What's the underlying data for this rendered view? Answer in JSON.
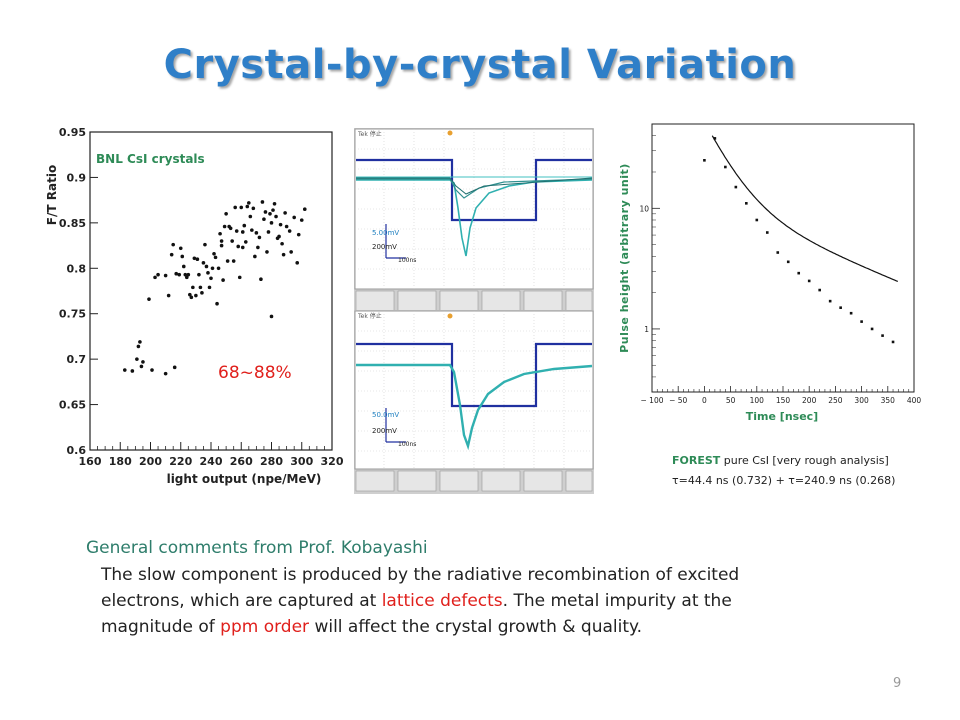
{
  "slide": {
    "title": "Crystal-by-crystal Variation",
    "page_number": "9"
  },
  "comments": {
    "heading": "General comments from Prof. Kobayashi",
    "line1": "The slow component is produced by the radiative recombination of excited",
    "line2_a": "electrons, which are captured at ",
    "line2_red": "lattice defects",
    "line2_b": ". The metal impurity at the",
    "line3_a": "magnitude of ",
    "line3_red": "ppm order",
    "line3_b": " will affect the crystal growth & quality."
  },
  "scatter_label": "BNL CsI crystals",
  "range_annotation": "68~88%",
  "scope_top": {
    "volt_label": "5.00mV",
    "volt2_label": "200mV",
    "time_label": "100ns"
  },
  "scope_bottom": {
    "volt_label": "50.0mV",
    "volt2_label": "200mV",
    "time_label": "100ns"
  },
  "forest": {
    "highlight": "FOREST",
    "line1": " pure CsI [very rough analysis]",
    "line2": "τ=44.4 ns (0.732) + τ=240.9 ns (0.268)"
  },
  "colors": {
    "title": "#2f7fc8",
    "heading": "#2e7d6b",
    "highlight": "#e0201c",
    "axis_green": "#2e8b57"
  },
  "chart_data": [
    {
      "type": "scatter",
      "title": "",
      "xlabel": "light output  (npe/MeV)",
      "ylabel": "F/T Ratio",
      "xlim": [
        160,
        320
      ],
      "ylim": [
        0.6,
        0.95
      ],
      "xticks": [
        "160",
        "180",
        "200",
        "220",
        "240",
        "260",
        "280",
        "300",
        "320"
      ],
      "yticks": [
        "0.6",
        "0.65",
        "0.7",
        "0.75",
        "0.8",
        "0.85",
        "0.9",
        "0.95"
      ],
      "annotation": "BNL CsI crystals",
      "points": [
        [
          183,
          0.688
        ],
        [
          188,
          0.687
        ],
        [
          191,
          0.7
        ],
        [
          192,
          0.714
        ],
        [
          193,
          0.719
        ],
        [
          194,
          0.692
        ],
        [
          195,
          0.697
        ],
        [
          201,
          0.688
        ],
        [
          210,
          0.684
        ],
        [
          216,
          0.691
        ],
        [
          199,
          0.766
        ],
        [
          203,
          0.79
        ],
        [
          205,
          0.793
        ],
        [
          210,
          0.792
        ],
        [
          212,
          0.77
        ],
        [
          214,
          0.815
        ],
        [
          215,
          0.826
        ],
        [
          217,
          0.794
        ],
        [
          219,
          0.793
        ],
        [
          220,
          0.822
        ],
        [
          221,
          0.813
        ],
        [
          222,
          0.802
        ],
        [
          223,
          0.793
        ],
        [
          224,
          0.79
        ],
        [
          225,
          0.793
        ],
        [
          226,
          0.771
        ],
        [
          227,
          0.768
        ],
        [
          228,
          0.779
        ],
        [
          229,
          0.811
        ],
        [
          230,
          0.77
        ],
        [
          231,
          0.81
        ],
        [
          232,
          0.793
        ],
        [
          233,
          0.779
        ],
        [
          234,
          0.773
        ],
        [
          235,
          0.806
        ],
        [
          236,
          0.826
        ],
        [
          237,
          0.802
        ],
        [
          238,
          0.795
        ],
        [
          239,
          0.779
        ],
        [
          240,
          0.789
        ],
        [
          241,
          0.8
        ],
        [
          242,
          0.816
        ],
        [
          243,
          0.812
        ],
        [
          244,
          0.761
        ],
        [
          245,
          0.8
        ],
        [
          246,
          0.838
        ],
        [
          247,
          0.83
        ],
        [
          248,
          0.787
        ],
        [
          249,
          0.846
        ],
        [
          250,
          0.86
        ],
        [
          251,
          0.808
        ],
        [
          252,
          0.846
        ],
        [
          253,
          0.844
        ],
        [
          254,
          0.83
        ],
        [
          255,
          0.808
        ],
        [
          256,
          0.867
        ],
        [
          257,
          0.841
        ],
        [
          258,
          0.824
        ],
        [
          259,
          0.79
        ],
        [
          260,
          0.867
        ],
        [
          261,
          0.84
        ],
        [
          262,
          0.847
        ],
        [
          263,
          0.829
        ],
        [
          264,
          0.868
        ],
        [
          265,
          0.872
        ],
        [
          266,
          0.857
        ],
        [
          267,
          0.842
        ],
        [
          268,
          0.866
        ],
        [
          269,
          0.813
        ],
        [
          270,
          0.839
        ],
        [
          271,
          0.823
        ],
        [
          272,
          0.834
        ],
        [
          273,
          0.788
        ],
        [
          274,
          0.873
        ],
        [
          275,
          0.854
        ],
        [
          276,
          0.862
        ],
        [
          277,
          0.818
        ],
        [
          278,
          0.84
        ],
        [
          279,
          0.86
        ],
        [
          280,
          0.85
        ],
        [
          281,
          0.864
        ],
        [
          282,
          0.871
        ],
        [
          283,
          0.857
        ],
        [
          284,
          0.833
        ],
        [
          285,
          0.835
        ],
        [
          286,
          0.848
        ],
        [
          287,
          0.827
        ],
        [
          288,
          0.815
        ],
        [
          289,
          0.861
        ],
        [
          290,
          0.846
        ],
        [
          292,
          0.841
        ],
        [
          293,
          0.818
        ],
        [
          295,
          0.856
        ],
        [
          297,
          0.806
        ],
        [
          298,
          0.837
        ],
        [
          300,
          0.853
        ],
        [
          302,
          0.865
        ],
        [
          280,
          0.747
        ],
        [
          247,
          0.825
        ],
        [
          261,
          0.823
        ]
      ]
    },
    {
      "type": "line",
      "title": "",
      "xlabel": "Time [nsec]",
      "ylabel": "Pulse height (arbitrary unit)",
      "xlim": [
        -100,
        400
      ],
      "ylim": [
        0.3,
        50
      ],
      "yscale": "log",
      "xticks": [
        "-100",
        "-50",
        "0",
        "50",
        "100",
        "150",
        "200",
        "250",
        "300",
        "350",
        "400"
      ],
      "yticks": [
        "1",
        "10"
      ],
      "series": [
        {
          "points": [
            [
              0,
              25
            ],
            [
              20,
              38
            ],
            [
              40,
              22
            ],
            [
              60,
              15
            ],
            [
              80,
              11
            ],
            [
              100,
              8
            ],
            [
              120,
              6.3
            ],
            [
              140,
              4.3
            ],
            [
              160,
              3.6
            ],
            [
              180,
              2.9
            ],
            [
              200,
              2.5
            ],
            [
              220,
              2.1
            ],
            [
              240,
              1.7
            ],
            [
              260,
              1.5
            ],
            [
              280,
              1.35
            ],
            [
              300,
              1.15
            ],
            [
              320,
              1.0
            ],
            [
              340,
              0.88
            ],
            [
              360,
              0.78
            ]
          ]
        }
      ],
      "fit": {
        "tau1": 44.4,
        "a1": 0.732,
        "tau2": 240.9,
        "a2": 0.268,
        "t0": 15,
        "amp": 40,
        "t_end": 370
      }
    }
  ]
}
